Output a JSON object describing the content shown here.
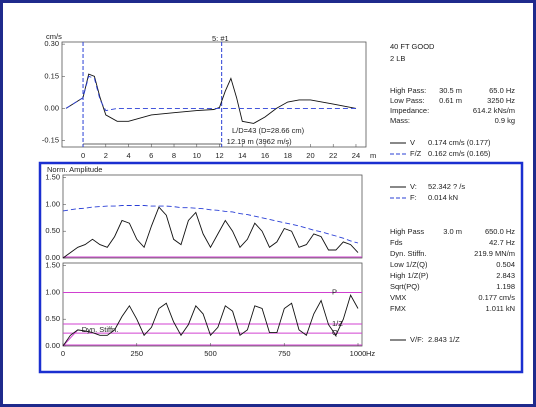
{
  "header": {
    "lines": [
      "40 FT GOOD",
      "2 LB"
    ]
  },
  "info": {
    "top": [
      [
        "High Pass:",
        "30.5 m",
        "65.0 Hz"
      ],
      [
        "Low Pass:",
        "0.61 m",
        "3250 Hz"
      ],
      [
        "Impedance:",
        "614.2 kNs/m"
      ],
      [
        "Mass:",
        "0.9 kg"
      ]
    ],
    "bottom": [
      [
        "High Pass",
        "3.0 m",
        "650.0 Hz"
      ],
      [
        "Fds",
        "42.7 Hz"
      ],
      [
        "Dyn. Stiffn.",
        "219.9 MN/m"
      ],
      [
        "Low 1/Z(Q)",
        "0.504"
      ],
      [
        "High 1/Z(P)",
        "2.843"
      ],
      [
        "Sqrt(PQ)",
        "1.198"
      ],
      [
        "VMX",
        "0.177 cm/s"
      ],
      [
        "FMX",
        "1.011 kN"
      ]
    ]
  },
  "chart_data": [
    {
      "type": "line",
      "title": "5: #1",
      "ylabel": "cm/s",
      "xlabel": "m",
      "x": [
        -1.5,
        0,
        0.5,
        1,
        1.5,
        2,
        3,
        4,
        6,
        8,
        10,
        11.5,
        12,
        12.5,
        13,
        13.5,
        14,
        15,
        16,
        17,
        18,
        19,
        20,
        22,
        24
      ],
      "series": [
        {
          "name": "V",
          "reading": "0.174 cm/s (0.177)",
          "color": "#111111",
          "dash": false,
          "values": [
            0,
            0.05,
            0.16,
            0.15,
            0.05,
            -0.03,
            -0.06,
            -0.06,
            -0.03,
            -0.02,
            -0.01,
            -0.005,
            0.005,
            0.08,
            0.14,
            0.05,
            -0.06,
            -0.07,
            -0.04,
            0,
            0.03,
            0.04,
            0.04,
            0.02,
            0
          ]
        },
        {
          "name": "F/Z",
          "reading": "0.162 cm/s (0.165)",
          "color": "#2a3fd6",
          "dash": true,
          "values": [
            0,
            0.05,
            0.15,
            0.14,
            0.04,
            -0.01,
            0,
            0,
            0,
            0,
            0,
            0,
            0,
            0,
            0,
            0,
            0,
            0,
            0,
            0,
            0,
            0,
            0,
            0,
            0
          ]
        }
      ],
      "markers": [
        0,
        12.19
      ],
      "marker_color": "#2a3fd6",
      "annotations": [
        "L/D=43 (D=28.66 cm)",
        "12.19 m (3962 m/s)"
      ],
      "xlim": [
        -1.85,
        24.53
      ],
      "xticks": [
        0,
        2,
        4,
        6,
        8,
        10,
        12,
        14,
        16,
        18,
        20,
        22,
        24
      ],
      "ylim": [
        -0.18,
        0.31
      ],
      "yticks": [
        {
          "value": 0.3,
          "label": "0.30"
        },
        {
          "value": 0.15,
          "label": "0.15"
        },
        {
          "value": 0,
          "label": "0.00"
        },
        {
          "value": -0.15,
          "label": "-0.15"
        }
      ]
    },
    {
      "type": "line",
      "ylabel": "Norm. Amplitude",
      "x": [
        0,
        25,
        50,
        75,
        100,
        125,
        150,
        175,
        200,
        225,
        250,
        275,
        300,
        325,
        350,
        375,
        400,
        425,
        450,
        475,
        500,
        525,
        550,
        575,
        600,
        625,
        650,
        675,
        700,
        725,
        750,
        775,
        800,
        825,
        850,
        875,
        900,
        925,
        950,
        975,
        1000
      ],
      "series": [
        {
          "name": "V:",
          "reading": "52.342 ? /s",
          "color": "#111111",
          "dash": false,
          "values": [
            0,
            0.1,
            0.2,
            0.25,
            0.35,
            0.25,
            0.2,
            0.4,
            0.7,
            0.65,
            0.35,
            0.2,
            0.6,
            0.95,
            0.8,
            0.35,
            0.25,
            0.7,
            0.85,
            0.45,
            0.2,
            0.45,
            0.7,
            0.5,
            0.2,
            0.35,
            0.65,
            0.5,
            0.2,
            0.3,
            0.55,
            0.5,
            0.2,
            0.25,
            0.45,
            0.4,
            0.15,
            0.15,
            0.3,
            0.25,
            0.1
          ]
        },
        {
          "name": "F:",
          "reading": "0.014 kN",
          "color": "#2a3fd6",
          "dash": true,
          "values": [
            0.88,
            0.9,
            0.92,
            0.93,
            0.95,
            0.96,
            0.97,
            0.97,
            0.98,
            0.98,
            0.98,
            0.98,
            0.97,
            0.97,
            0.97,
            0.96,
            0.94,
            0.94,
            0.93,
            0.92,
            0.9,
            0.89,
            0.87,
            0.86,
            0.83,
            0.81,
            0.78,
            0.75,
            0.72,
            0.69,
            0.66,
            0.63,
            0.6,
            0.56,
            0.52,
            0.49,
            0.45,
            0.41,
            0.37,
            0.32,
            0.28
          ]
        }
      ],
      "baseline_color": "#d040d0",
      "xlim": [
        0,
        1000
      ],
      "ylim": [
        0,
        1.55
      ],
      "yticks": [
        {
          "value": 0,
          "label": "0.00"
        },
        {
          "value": 0.5,
          "label": "0.50"
        },
        {
          "value": 1,
          "label": "1.00"
        },
        {
          "value": 1.5,
          "label": "1.50"
        }
      ]
    },
    {
      "type": "line",
      "xlabel": "Hz",
      "x": [
        0,
        25,
        50,
        75,
        100,
        125,
        150,
        175,
        200,
        225,
        250,
        275,
        300,
        325,
        350,
        375,
        400,
        425,
        450,
        475,
        500,
        525,
        550,
        575,
        600,
        625,
        650,
        675,
        700,
        725,
        750,
        775,
        800,
        825,
        850,
        875,
        900,
        925,
        950,
        975,
        1000
      ],
      "series": [
        {
          "name": "V/F:",
          "reading": "2.843 1/Z",
          "color": "#111111",
          "dash": false,
          "values": [
            0,
            0.2,
            0.3,
            0.28,
            0.25,
            0.2,
            0.2,
            0.3,
            0.55,
            0.75,
            0.5,
            0.2,
            0.35,
            0.7,
            0.8,
            0.45,
            0.2,
            0.4,
            0.75,
            0.6,
            0.2,
            0.35,
            0.75,
            0.65,
            0.2,
            0.3,
            0.75,
            0.7,
            0.25,
            0.25,
            0.7,
            0.8,
            0.3,
            0.2,
            0.6,
            0.85,
            0.4,
            0.2,
            0.5,
            0.95,
            0.7
          ]
        }
      ],
      "hlines": [
        {
          "label": "P",
          "value": 1
        },
        {
          "label": "1/Z",
          "value": 0.41
        },
        {
          "label": "Q",
          "value": 0.24
        }
      ],
      "hline_color": "#d040d0",
      "stiffness": {
        "label": "Dyn. Stiffn.",
        "x": [
          0,
          50
        ],
        "values": [
          0,
          0.3
        ]
      },
      "baseline_color": "#d040d0",
      "xlim": [
        0,
        1000
      ],
      "xticks": [
        0,
        250,
        500,
        750,
        1000
      ],
      "ylim": [
        0,
        1.55
      ],
      "yticks": [
        {
          "value": 0,
          "label": "0.00"
        },
        {
          "value": 0.5,
          "label": "0.50"
        },
        {
          "value": 1,
          "label": "1.00"
        },
        {
          "value": 1.5,
          "label": "1.50"
        }
      ]
    }
  ]
}
